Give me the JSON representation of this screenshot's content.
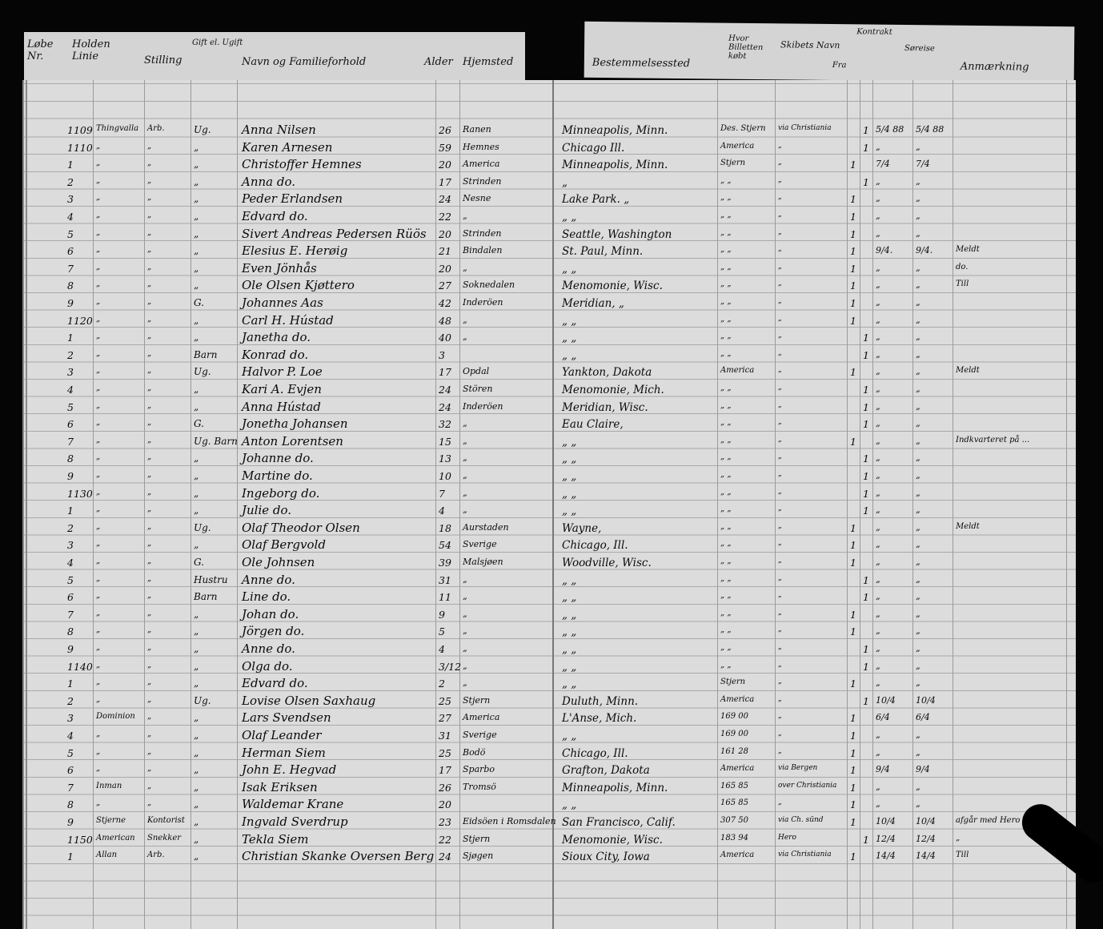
{
  "header_left": [
    "Løbe Nr.",
    "Holden Linie",
    "Stilling",
    "Gift el. Ugift",
    "Navn og Familieforhold",
    "Alder",
    "Hjemsted"
  ],
  "header_right": [
    "Bestemmelsessted",
    "Hvor Billetten købt",
    "Skibets Navn",
    "Fra",
    "Kontrakt",
    "Søreise",
    "Anmærkning"
  ],
  "rows": [
    [
      "1109",
      "Thingvalla",
      "Arb.",
      "Ug.",
      "Anna Nilsen",
      "26",
      "Ranen",
      "Minneapolis, Minn.",
      "Des. Stjern",
      "via Christiania",
      "",
      "1",
      "5/4 88",
      "5/4 88",
      ""
    ],
    [
      "1110",
      "„",
      "„",
      "„",
      "Karen Arnesen",
      "59",
      "Hemnes",
      "Chicago  Ill.",
      "America",
      "„",
      "",
      "1",
      "„",
      "„",
      ""
    ],
    [
      "1",
      "„",
      "„",
      "„",
      "Christoffer Hemnes",
      "20",
      "America",
      "Minneapolis, Minn.",
      "Stjern",
      "„",
      "1",
      "",
      "7/4",
      "7/4",
      ""
    ],
    [
      "2",
      "„",
      "„",
      "„",
      "Anna  do.",
      "17",
      "Strinden",
      "„",
      "„ „",
      "„",
      "",
      "1",
      "„",
      "„",
      ""
    ],
    [
      "3",
      "„",
      "„",
      "„",
      "Peder Erlandsen",
      "24",
      "Nesne",
      "Lake Park.   „",
      "„ „",
      "„",
      "1",
      "",
      "„",
      "„",
      ""
    ],
    [
      "4",
      "„",
      "„",
      "„",
      "Edvard  do.",
      "22",
      "„",
      "„   „",
      "„ „",
      "„",
      "1",
      "",
      "„",
      "„",
      ""
    ],
    [
      "5",
      "„",
      "„",
      "„",
      "Sivert Andreas Pedersen Rüös",
      "20",
      "Strinden",
      "Seattle, Washington",
      "„ „",
      "„",
      "1",
      "",
      "„",
      "„",
      ""
    ],
    [
      "6",
      "„",
      "„",
      "„",
      "Elesius E. Herøig",
      "21",
      "Bindalen",
      "St. Paul, Minn.",
      "„ „",
      "„",
      "1",
      "",
      "9/4.",
      "9/4.",
      "Meldt"
    ],
    [
      "7",
      "„",
      "„",
      "„",
      "Even Jönhås",
      "20",
      "„",
      "„   „",
      "„ „",
      "„",
      "1",
      "",
      "„",
      "„",
      "do."
    ],
    [
      "8",
      "„",
      "„",
      "„",
      "Ole Olsen Kjøttero",
      "27",
      "Soknedalen",
      "Menomonie, Wisc.",
      "„ „",
      "„",
      "1",
      "",
      "„",
      "„",
      "Till"
    ],
    [
      "9",
      "„",
      "„",
      "G.",
      "Johannes Aas",
      "42",
      "Inderöen",
      "Meridian,   „",
      "„ „",
      "„",
      "1",
      "",
      "„",
      "„",
      ""
    ],
    [
      "1120",
      "„",
      "„",
      "„",
      "Carl H. Hústad",
      "48",
      "„",
      "„   „",
      "„ „",
      "„",
      "1",
      "",
      "„",
      "„",
      ""
    ],
    [
      "1",
      "„",
      "„",
      "„",
      "Janetha  do.",
      "40",
      "„",
      "„   „",
      "„ „",
      "„",
      "",
      "1",
      "„",
      "„",
      ""
    ],
    [
      "2",
      "„",
      "„",
      "Barn",
      "Konrad  do.",
      "3",
      "",
      "„   „",
      "„ „",
      "„",
      "",
      "1",
      "„",
      "„",
      ""
    ],
    [
      "3",
      "„",
      "„",
      "Ug.",
      "Halvor P. Loe",
      "17",
      "Opdal",
      "Yankton, Dakota",
      "America",
      "„",
      "1",
      "",
      "„",
      "„",
      "Meldt"
    ],
    [
      "4",
      "„",
      "„",
      "„",
      "Kari A. Evjen",
      "24",
      "Stören",
      "Menomonie, Mich.",
      "„ „",
      "„",
      "",
      "1",
      "„",
      "„",
      ""
    ],
    [
      "5",
      "„",
      "„",
      "„",
      "Anna Hústad",
      "24",
      "Inderöen",
      "Meridian, Wisc.",
      "„ „",
      "„",
      "",
      "1",
      "„",
      "„",
      ""
    ],
    [
      "6",
      "„",
      "„",
      "G.",
      "Jonetha Johansen",
      "32",
      "„",
      "Eau Claire,",
      "„ „",
      "„",
      "",
      "1",
      "„",
      "„",
      ""
    ],
    [
      "7",
      "„",
      "„",
      "Ug. Barn",
      "Anton Lorentsen",
      "15",
      "„",
      "„   „",
      "„ „",
      "„",
      "1",
      "",
      "„",
      "„",
      "Indkvarteret på ..."
    ],
    [
      "8",
      "„",
      "„",
      "„",
      "Johanne  do.",
      "13",
      "„",
      "„   „",
      "„ „",
      "„",
      "",
      "1",
      "„",
      "„",
      ""
    ],
    [
      "9",
      "„",
      "„",
      "„",
      "Martine  do.",
      "10",
      "„",
      "„   „",
      "„ „",
      "„",
      "",
      "1",
      "„",
      "„",
      ""
    ],
    [
      "1130",
      "„",
      "„",
      "„",
      "Ingeborg  do.",
      "7",
      "„",
      "„   „",
      "„ „",
      "„",
      "",
      "1",
      "„",
      "„",
      ""
    ],
    [
      "1",
      "„",
      "„",
      "„",
      "Julie  do.",
      "4",
      "„",
      "„   „",
      "„ „",
      "„",
      "",
      "1",
      "„",
      "„",
      ""
    ],
    [
      "2",
      "„",
      "„",
      "Ug.",
      "Olaf Theodor Olsen",
      "18",
      "Aurstaden",
      "Wayne,",
      "„ „",
      "„",
      "1",
      "",
      "„",
      "„",
      "Meldt"
    ],
    [
      "3",
      "„",
      "„",
      "„",
      "Olaf Bergvold",
      "54",
      "Sverige",
      "Chicago, Ill.",
      "„ „",
      "„",
      "1",
      "",
      "„",
      "„",
      ""
    ],
    [
      "4",
      "„",
      "„",
      "G.",
      "Ole Johnsen",
      "39",
      "Malsjøen",
      "Woodville, Wisc.",
      "„ „",
      "„",
      "1",
      "",
      "„",
      "„",
      ""
    ],
    [
      "5",
      "„",
      "„",
      "Hustru",
      "Anne  do.",
      "31",
      "„",
      "„   „",
      "„ „",
      "„",
      "",
      "1",
      "„",
      "„",
      ""
    ],
    [
      "6",
      "„",
      "„",
      "Barn",
      "Line  do.",
      "11",
      "„",
      "„   „",
      "„ „",
      "„",
      "",
      "1",
      "„",
      "„",
      ""
    ],
    [
      "7",
      "„",
      "„",
      "„",
      "Johan  do.",
      "9",
      "„",
      "„   „",
      "„ „",
      "„",
      "1",
      "",
      "„",
      "„",
      ""
    ],
    [
      "8",
      "„",
      "„",
      "„",
      "Jörgen  do.",
      "5",
      "„",
      "„   „",
      "„ „",
      "„",
      "1",
      "",
      "„",
      "„",
      ""
    ],
    [
      "9",
      "„",
      "„",
      "„",
      "Anne  do.",
      "4",
      "„",
      "„   „",
      "„ „",
      "„",
      "",
      "1",
      "„",
      "„",
      ""
    ],
    [
      "1140",
      "„",
      "„",
      "„",
      "Olga  do.",
      "3/12",
      "„",
      "„   „",
      "„ „",
      "„",
      "",
      "1",
      "„",
      "„",
      ""
    ],
    [
      "1",
      "„",
      "„",
      "„",
      "Edvard  do.",
      "2",
      "„",
      "„   „",
      "Stjern",
      "„",
      "1",
      "",
      "„",
      "„",
      ""
    ],
    [
      "2",
      "„",
      "„",
      "Ug.",
      "Lovise Olsen Saxhaug",
      "25",
      "Stjern",
      "Duluth, Minn.",
      "America",
      "„",
      "",
      "1",
      "10/4",
      "10/4",
      ""
    ],
    [
      "3",
      "Dominion",
      "„",
      "„",
      "Lars Svendsen",
      "27",
      "America",
      "L'Anse, Mich.",
      "169 00",
      "„",
      "1",
      "",
      "6/4",
      "6/4",
      ""
    ],
    [
      "4",
      "„",
      "„",
      "„",
      "Olaf Leander",
      "31",
      "Sverige",
      "„   „",
      "169 00",
      "„",
      "1",
      "",
      "„",
      "„",
      ""
    ],
    [
      "5",
      "„",
      "„",
      "„",
      "Herman Siem",
      "25",
      "Bodö",
      "Chicago, Ill.",
      "161 28",
      "„",
      "1",
      "",
      "„",
      "„",
      ""
    ],
    [
      "6",
      "„",
      "„",
      "„",
      "John E. Hegvad",
      "17",
      "Sparbo",
      "Grafton, Dakota",
      "America",
      "via Bergen",
      "1",
      "",
      "9/4",
      "9/4",
      ""
    ],
    [
      "7",
      "Inman",
      "„",
      "„",
      "Isak Eriksen",
      "26",
      "Tromsö",
      "Minneapolis, Minn.",
      "165 85",
      "over Christiania",
      "1",
      "",
      "„",
      "„",
      ""
    ],
    [
      "8",
      "„",
      "„",
      "„",
      "Waldemar Krane",
      "20",
      "",
      "„   „",
      "165 85",
      "„",
      "1",
      "",
      "„",
      "„",
      ""
    ],
    [
      "9",
      "Stjerne",
      "Kontorist",
      "„",
      "Ingvald Sverdrup",
      "23",
      "Eidsöen i Romsdalen",
      "San Francisco, Calif.",
      "307 50",
      "via Ch. sünd",
      "1",
      "",
      "10/4",
      "10/4",
      "afgår med Hero 9/4"
    ],
    [
      "1150",
      "American",
      "Snekker",
      "„",
      "Tekla Siem",
      "22",
      "Stjern",
      "Menomonie, Wisc.",
      "183 94",
      "Hero",
      "",
      "1",
      "12/4",
      "12/4",
      "„"
    ],
    [
      "1",
      "Allan",
      "Arb.",
      "„",
      "Christian Skanke Oversen Berg",
      "24",
      "Sjøgen",
      "Sioux City, Iowa",
      "America",
      "via Christiania",
      "1",
      "",
      "14/4",
      "14/4",
      "Till"
    ]
  ]
}
